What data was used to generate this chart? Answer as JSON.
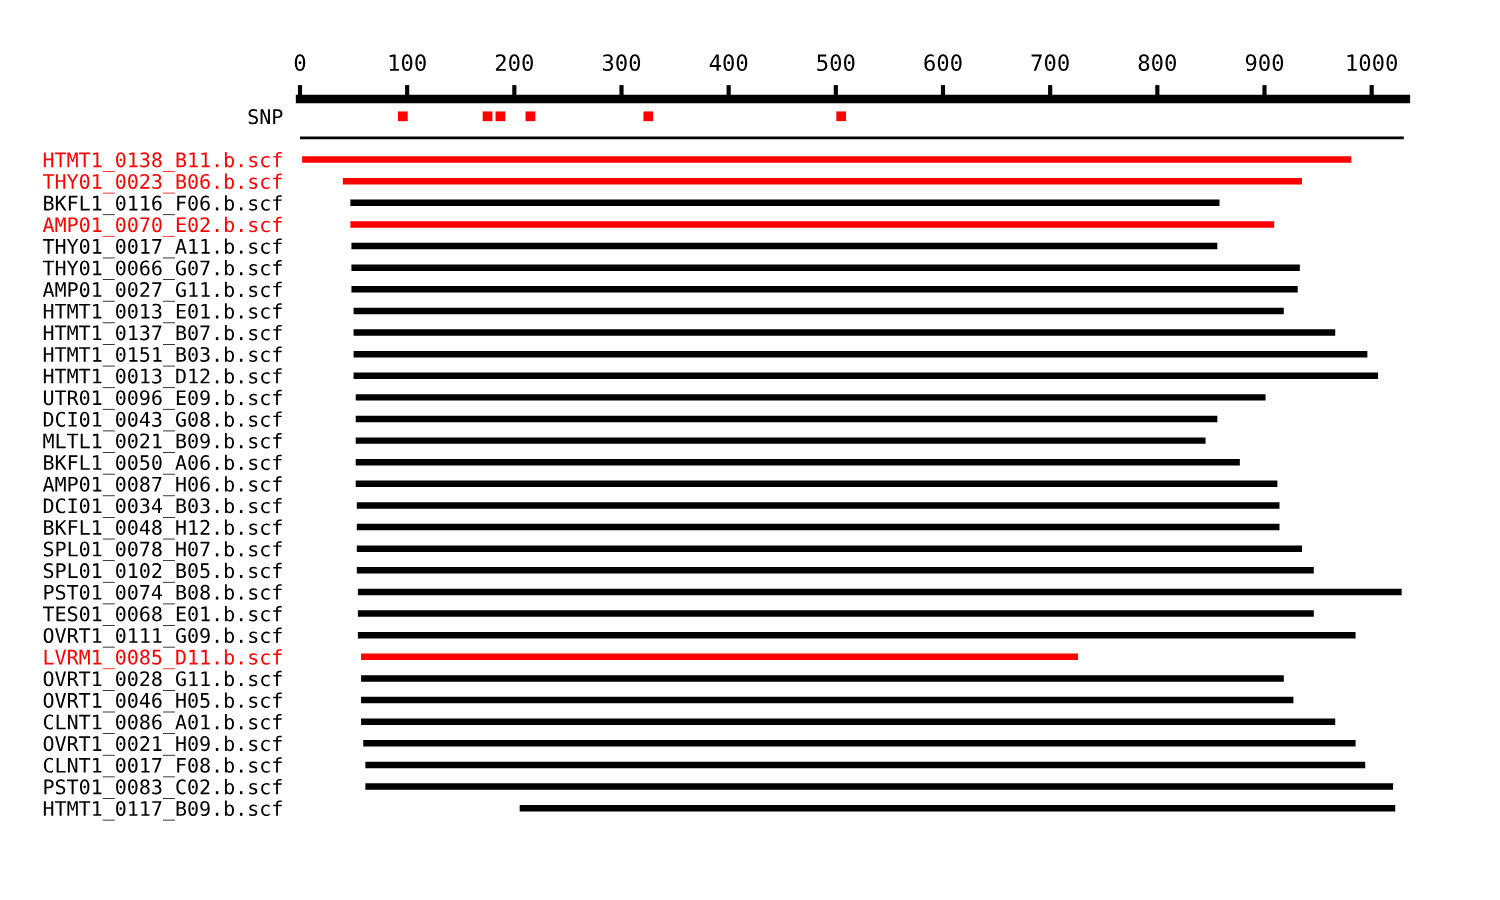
{
  "chart_data": {
    "type": "bar",
    "orientation": "horizontal",
    "xlim": [
      0,
      1032
    ],
    "xticks": [
      0,
      100,
      200,
      300,
      400,
      500,
      600,
      700,
      800,
      900,
      1000
    ],
    "grid": false,
    "legend": false,
    "categories": [
      "SNP",
      null,
      "HTMT1_0138_B11.b.scf",
      "THY01_0023_B06.b.scf",
      "BKFL1_0116_F06.b.scf",
      "AMP01_0070_E02.b.scf",
      "THY01_0017_A11.b.scf",
      "THY01_0066_G07.b.scf",
      "AMP01_0027_G11.b.scf",
      "HTMT1_0013_E01.b.scf",
      "HTMT1_0137_B07.b.scf",
      "HTMT1_0151_B03.b.scf",
      "HTMT1_0013_D12.b.scf",
      "UTR01_0096_E09.b.scf",
      "DCI01_0043_G08.b.scf",
      "MLTL1_0021_B09.b.scf",
      "BKFL1_0050_A06.b.scf",
      "AMP01_0087_H06.b.scf",
      "DCI01_0034_B03.b.scf",
      "BKFL1_0048_H12.b.scf",
      "SPL01_0078_H07.b.scf",
      "SPL01_0102_B05.b.scf",
      "PST01_0074_B08.b.scf",
      "TES01_0068_E01.b.scf",
      "OVRT1_0111_G09.b.scf",
      "LVRM1_0085_D11.b.scf",
      "OVRT1_0028_G11.b.scf",
      "OVRT1_0046_H05.b.scf",
      "CLNT1_0086_A01.b.scf",
      "OVRT1_0021_H09.b.scf",
      "CLNT1_0017_F08.b.scf",
      "PST01_0083_C02.b.scf",
      "HTMT1_0117_B09.b.scf"
    ],
    "series": [
      {
        "values": [
          null,
          1030,
          979,
          895,
          811,
          862,
          808,
          885,
          883,
          868,
          916,
          946,
          956,
          849,
          804,
          793,
          825,
          860,
          861,
          861,
          882,
          893,
          974,
          892,
          931,
          669,
          861,
          870,
          909,
          926,
          933,
          959,
          817
        ],
        "base": [
          null,
          0,
          2,
          40,
          47,
          47,
          48,
          48,
          48,
          50,
          50,
          50,
          50,
          52,
          52,
          52,
          52,
          52,
          53,
          53,
          53,
          53,
          54,
          54,
          54,
          57,
          57,
          57,
          57,
          59,
          61,
          61,
          205
        ],
        "colors": [
          "#000000",
          "#000000",
          "#ff0000",
          "#ff0000",
          "#000000",
          "#ff0000",
          "#000000",
          "#000000",
          "#000000",
          "#000000",
          "#000000",
          "#000000",
          "#000000",
          "#000000",
          "#000000",
          "#000000",
          "#000000",
          "#000000",
          "#000000",
          "#000000",
          "#000000",
          "#000000",
          "#000000",
          "#000000",
          "#000000",
          "#ff0000",
          "#000000",
          "#000000",
          "#000000",
          "#000000",
          "#000000",
          "#000000",
          "#000000"
        ]
      },
      {
        "type": "scatter",
        "color": "#ff0000",
        "marker": "square",
        "x": [
          "SNP",
          "SNP",
          "SNP",
          "SNP",
          "SNP",
          "SNP"
        ],
        "values": [
          96,
          175,
          187,
          215,
          325,
          505
        ]
      }
    ]
  }
}
